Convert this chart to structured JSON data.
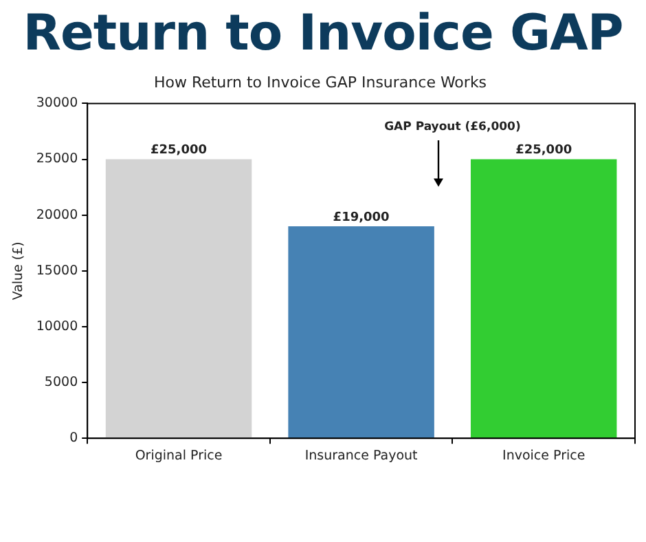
{
  "chart_data": {
    "type": "bar",
    "title": "Return to Invoice GAP",
    "subtitle": "How Return to Invoice GAP Insurance Works",
    "ylabel": "Value (£)",
    "categories": [
      "Original Price",
      "Insurance Payout",
      "Invoice Price"
    ],
    "values": [
      25000,
      19000,
      25000
    ],
    "colors": [
      "#d3d3d3",
      "#4682b4",
      "#32cd32"
    ],
    "value_labels": [
      "£25,000",
      "£19,000",
      "£25,000"
    ],
    "ylim": [
      0,
      30000
    ],
    "yticks": [
      0,
      5000,
      10000,
      15000,
      20000,
      25000,
      30000
    ],
    "grid": false,
    "legend": false,
    "annotations": [
      "GAP Payout (£6,000)"
    ]
  }
}
